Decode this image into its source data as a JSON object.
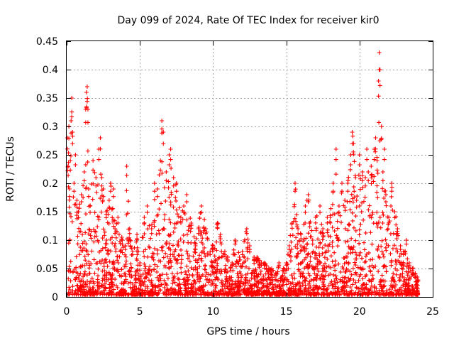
{
  "chart_data": {
    "type": "scatter",
    "title": "Day 099 of 2024, Rate Of TEC Index for receiver kir0",
    "xlabel": "GPS time / hours",
    "ylabel": "ROTI / TECUs",
    "xlim": [
      0,
      25
    ],
    "ylim": [
      0,
      0.45
    ],
    "xticks": [
      0,
      5,
      10,
      15,
      20,
      25
    ],
    "xtick_labels": [
      "0",
      "5",
      "10",
      "15",
      "20",
      "25"
    ],
    "yticks": [
      0,
      0.05,
      0.1,
      0.15,
      0.2,
      0.25,
      0.3,
      0.35,
      0.4,
      0.45
    ],
    "ytick_labels": [
      "0",
      "0.05",
      "0.1",
      "0.15",
      "0.2",
      "0.25",
      "0.3",
      "0.35",
      "0.4",
      "0.45"
    ],
    "grid": true,
    "marker": "plus",
    "color": "#ff0000",
    "series": [
      {
        "name": "ROTI",
        "x": [
          0.05,
          0.1,
          0.15,
          0.2,
          0.25,
          0.3,
          0.35,
          0.4,
          0.5,
          0.6,
          0.7,
          0.8,
          1.0,
          1.2,
          1.3,
          1.35,
          1.4,
          1.45,
          1.5,
          1.6,
          1.8,
          2.0,
          2.2,
          2.3,
          2.4,
          2.5,
          2.7,
          2.9,
          3.0,
          3.2,
          3.3,
          3.5,
          3.8,
          4.0,
          4.1,
          4.3,
          4.5,
          4.8,
          5.0,
          5.3,
          5.5,
          5.8,
          6.0,
          6.2,
          6.4,
          6.5,
          6.6,
          6.8,
          7.0,
          7.1,
          7.3,
          7.5,
          7.8,
          8.0,
          8.2,
          8.5,
          8.8,
          9.0,
          9.2,
          9.5,
          9.8,
          10.0,
          10.3,
          10.5,
          10.8,
          11.0,
          11.3,
          11.5,
          11.8,
          12.0,
          12.3,
          12.5,
          12.8,
          13.0,
          13.3,
          13.5,
          13.8,
          14.0,
          14.3,
          14.5,
          14.8,
          15.0,
          15.2,
          15.4,
          15.6,
          15.8,
          16.0,
          16.3,
          16.5,
          16.8,
          17.0,
          17.3,
          17.5,
          17.8,
          18.0,
          18.2,
          18.4,
          18.6,
          18.8,
          19.0,
          19.2,
          19.4,
          19.5,
          19.6,
          19.8,
          20.0,
          20.2,
          20.4,
          20.5,
          20.6,
          20.8,
          21.0,
          21.1,
          21.2,
          21.3,
          21.35,
          21.4,
          21.5,
          21.6,
          21.7,
          21.8,
          22.0,
          22.2,
          22.4,
          22.6,
          22.8,
          23.0,
          23.2,
          23.4,
          23.6,
          23.8,
          24.0
        ],
        "y": [
          0.28,
          0.23,
          0.3,
          0.19,
          0.24,
          0.31,
          0.35,
          0.29,
          0.2,
          0.25,
          0.17,
          0.15,
          0.18,
          0.22,
          0.33,
          0.36,
          0.37,
          0.33,
          0.19,
          0.16,
          0.24,
          0.21,
          0.26,
          0.28,
          0.21,
          0.19,
          0.15,
          0.17,
          0.2,
          0.19,
          0.12,
          0.14,
          0.1,
          0.09,
          0.23,
          0.12,
          0.08,
          0.11,
          0.06,
          0.14,
          0.16,
          0.12,
          0.2,
          0.19,
          0.24,
          0.31,
          0.29,
          0.22,
          0.25,
          0.26,
          0.21,
          0.2,
          0.14,
          0.16,
          0.18,
          0.13,
          0.09,
          0.12,
          0.16,
          0.12,
          0.08,
          0.09,
          0.13,
          0.11,
          0.08,
          0.07,
          0.06,
          0.1,
          0.07,
          0.08,
          0.12,
          0.09,
          0.07,
          0.07,
          0.06,
          0.06,
          0.05,
          0.05,
          0.04,
          0.06,
          0.05,
          0.06,
          0.09,
          0.13,
          0.2,
          0.12,
          0.11,
          0.16,
          0.18,
          0.1,
          0.14,
          0.16,
          0.12,
          0.14,
          0.14,
          0.2,
          0.26,
          0.16,
          0.2,
          0.17,
          0.2,
          0.25,
          0.29,
          0.27,
          0.17,
          0.25,
          0.22,
          0.21,
          0.26,
          0.22,
          0.23,
          0.26,
          0.28,
          0.24,
          0.38,
          0.43,
          0.4,
          0.3,
          0.22,
          0.26,
          0.18,
          0.14,
          0.2,
          0.15,
          0.12,
          0.09,
          0.08,
          0.1,
          0.06,
          0.05,
          0.04,
          0.03
        ],
        "baseline_note": ""
      }
    ]
  }
}
